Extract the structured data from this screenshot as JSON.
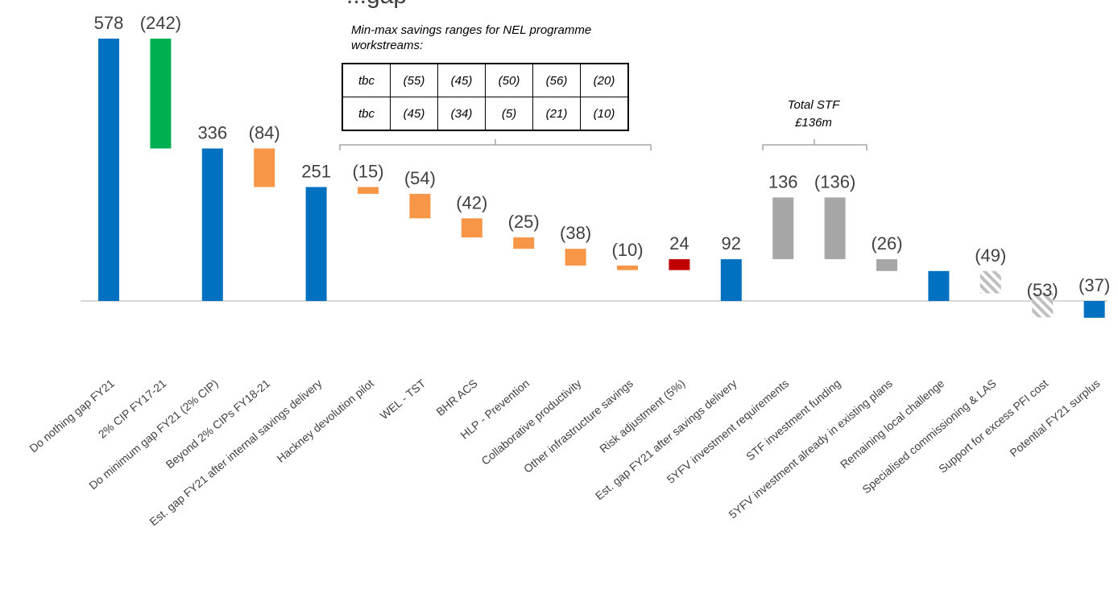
{
  "title_visible": "...gap",
  "chart_data": {
    "type": "waterfall",
    "categories": [
      "Do nothing gap FY21",
      "2% CIP FY17-21",
      "Do minimum gap FY21 (2% CIP)",
      "Beyond 2% CIPs FY18-21",
      "Est. gap FY21 after internal savings delivery",
      "Hackney devolution pilot",
      "WEL - TST",
      "BHR ACS",
      "HLP - Prevention",
      "Collaborative productivity",
      "Other infrastructure savings",
      "Risk adjustment (5%)",
      "Est. gap FY21 after savings delivery",
      "5YFV investment requirements",
      "STF investment funding",
      "5YFV investment already in existing plans",
      "Remaining local challenge",
      "Specialised commissioning & LAS",
      "Support for excess PFI cost",
      "Potential FY21 surplus"
    ],
    "bars": [
      {
        "label": "578",
        "start": 0,
        "end": 578,
        "kind": "total"
      },
      {
        "label": "(242)",
        "start": 578,
        "end": 336,
        "kind": "cip"
      },
      {
        "label": "336",
        "start": 0,
        "end": 336,
        "kind": "total"
      },
      {
        "label": "(84)",
        "start": 336,
        "end": 251,
        "kind": "saving"
      },
      {
        "label": "251",
        "start": 0,
        "end": 251,
        "kind": "total"
      },
      {
        "label": "(15)",
        "start": 251,
        "end": 236,
        "kind": "saving"
      },
      {
        "label": "(54)",
        "start": 236,
        "end": 182,
        "kind": "saving"
      },
      {
        "label": "(42)",
        "start": 182,
        "end": 140,
        "kind": "saving"
      },
      {
        "label": "(25)",
        "start": 140,
        "end": 115,
        "kind": "saving"
      },
      {
        "label": "(38)",
        "start": 115,
        "end": 78,
        "kind": "saving"
      },
      {
        "label": "(10)",
        "start": 78,
        "end": 68,
        "kind": "saving"
      },
      {
        "label": "24",
        "start": 68,
        "end": 92,
        "kind": "risk"
      },
      {
        "label": "92",
        "start": 0,
        "end": 92,
        "kind": "total"
      },
      {
        "label": "136",
        "start": 92,
        "end": 228,
        "kind": "investment"
      },
      {
        "label": "(136)",
        "start": 228,
        "end": 92,
        "kind": "investment"
      },
      {
        "label": "(26)",
        "start": 92,
        "end": 66,
        "kind": "investment"
      },
      {
        "label": "",
        "start": 0,
        "end": 66,
        "kind": "total"
      },
      {
        "label": "(49)",
        "start": 66,
        "end": 17,
        "kind": "hatched"
      },
      {
        "label": "(53)",
        "start": 17,
        "end": -36,
        "kind": "hatched"
      },
      {
        "label": "(37)",
        "start": 0,
        "end": -37,
        "kind": "total"
      }
    ],
    "colors": {
      "total": "#0070c0",
      "cip": "#00b050",
      "saving": "#f79646",
      "risk": "#c00000",
      "investment": "#a6a6a6",
      "hatched": "#bfbfbf"
    },
    "ylim": [
      -120,
      600
    ]
  },
  "nel_table": {
    "title": "Min-max savings ranges for NEL programme workstreams:",
    "rows": [
      [
        "tbc",
        "(55)",
        "(45)",
        "(50)",
        "(56)",
        "(20)"
      ],
      [
        "tbc",
        "(45)",
        "(34)",
        "(5)",
        "(21)",
        "(10)"
      ]
    ]
  },
  "stf_note": {
    "line1": "Total STF",
    "line2": "£136m"
  }
}
